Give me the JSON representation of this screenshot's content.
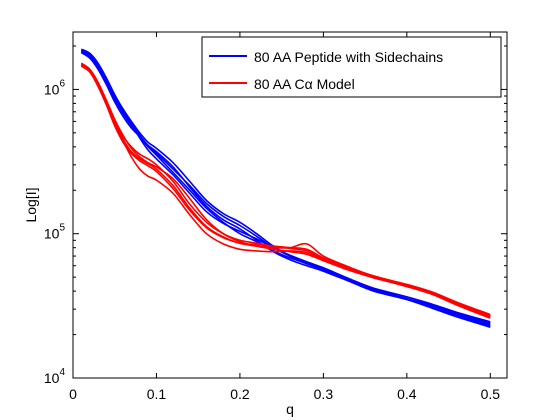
{
  "chart_data": {
    "type": "line",
    "title": "",
    "xlabel": "q",
    "ylabel": "Log[I]",
    "xlim": [
      0,
      0.52
    ],
    "ylim": [
      10000,
      2500000
    ],
    "yscale": "log",
    "grid": false,
    "legend_position": "top-right",
    "x_ticks": [
      {
        "value": 0,
        "label": "0"
      },
      {
        "value": 0.1,
        "label": "0.1"
      },
      {
        "value": 0.2,
        "label": "0.2"
      },
      {
        "value": 0.3,
        "label": "0.3"
      },
      {
        "value": 0.4,
        "label": "0.4"
      },
      {
        "value": 0.5,
        "label": "0.5"
      }
    ],
    "y_ticks": [
      {
        "value": 10000,
        "base": "10",
        "exp": "4"
      },
      {
        "value": 100000,
        "base": "10",
        "exp": "5"
      },
      {
        "value": 1000000,
        "base": "10",
        "exp": "6"
      }
    ],
    "legend": [
      {
        "label": "80 AA Peptide with Sidechains",
        "color": "#0000ff"
      },
      {
        "label": "80 AA Cα Model",
        "color": "#ff0000"
      }
    ],
    "series_groups": [
      {
        "legend_index": 0,
        "color": "#0000ff",
        "x": [
          0.01,
          0.02,
          0.03,
          0.04,
          0.05,
          0.06,
          0.07,
          0.08,
          0.09,
          0.1,
          0.12,
          0.14,
          0.16,
          0.18,
          0.2,
          0.22,
          0.24,
          0.26,
          0.28,
          0.3,
          0.33,
          0.36,
          0.4,
          0.43,
          0.46,
          0.5
        ],
        "runs": [
          [
            1850000,
            1720000,
            1450000,
            1150000,
            880000,
            700000,
            580000,
            480000,
            410000,
            370000,
            290000,
            210000,
            155000,
            125000,
            108000,
            90000,
            75000,
            66000,
            60000,
            55000,
            47000,
            40000,
            35000,
            31000,
            27000,
            23000
          ],
          [
            1900000,
            1780000,
            1520000,
            1200000,
            920000,
            730000,
            600000,
            500000,
            430000,
            390000,
            310000,
            230000,
            170000,
            138000,
            120000,
            100000,
            82000,
            70000,
            62000,
            57000,
            48000,
            41000,
            35500,
            31500,
            27500,
            23500
          ],
          [
            1800000,
            1650000,
            1380000,
            1080000,
            820000,
            650000,
            540000,
            470000,
            400000,
            350000,
            265000,
            200000,
            150000,
            120000,
            100000,
            88000,
            76000,
            68000,
            62000,
            56000,
            48500,
            41500,
            36500,
            32500,
            28500,
            24500
          ],
          [
            1880000,
            1740000,
            1480000,
            1180000,
            900000,
            710000,
            580000,
            460000,
            380000,
            330000,
            255000,
            190000,
            142000,
            118000,
            104000,
            92000,
            80000,
            71000,
            64000,
            58000,
            49000,
            42000,
            36500,
            32000,
            28000,
            24000
          ],
          [
            1830000,
            1700000,
            1430000,
            1120000,
            860000,
            680000,
            560000,
            470000,
            405000,
            360000,
            280000,
            215000,
            162000,
            132000,
            114000,
            96000,
            80000,
            70000,
            63000,
            57000,
            47500,
            40500,
            35000,
            30500,
            26500,
            22500
          ]
        ]
      },
      {
        "legend_index": 1,
        "color": "#ff0000",
        "x": [
          0.01,
          0.02,
          0.03,
          0.04,
          0.05,
          0.06,
          0.07,
          0.08,
          0.09,
          0.1,
          0.12,
          0.14,
          0.16,
          0.18,
          0.2,
          0.22,
          0.24,
          0.26,
          0.28,
          0.3,
          0.33,
          0.36,
          0.4,
          0.43,
          0.46,
          0.5
        ],
        "runs": [
          [
            1500000,
            1350000,
            1100000,
            820000,
            600000,
            470000,
            400000,
            355000,
            330000,
            300000,
            230000,
            160000,
            120000,
            100000,
            90000,
            86000,
            82000,
            79000,
            76000,
            67000,
            57000,
            50000,
            44000,
            39000,
            33000,
            27000
          ],
          [
            1450000,
            1320000,
            1050000,
            780000,
            560000,
            430000,
            360000,
            320000,
            295000,
            270000,
            205000,
            145000,
            110000,
            94000,
            86000,
            82000,
            80000,
            80000,
            85000,
            70000,
            59000,
            51000,
            44500,
            39500,
            33500,
            27500
          ],
          [
            1480000,
            1330000,
            1070000,
            800000,
            580000,
            440000,
            340000,
            280000,
            250000,
            235000,
            190000,
            135000,
            100000,
            85000,
            78000,
            76000,
            75000,
            76000,
            74000,
            66000,
            57000,
            50500,
            43500,
            38500,
            32500,
            26500
          ],
          [
            1520000,
            1380000,
            1120000,
            840000,
            620000,
            480000,
            390000,
            340000,
            310000,
            290000,
            240000,
            175000,
            125000,
            100000,
            88000,
            82000,
            78000,
            75000,
            72000,
            65000,
            56000,
            49500,
            43000,
            38000,
            32000,
            26000
          ],
          [
            1470000,
            1340000,
            1080000,
            800000,
            590000,
            450000,
            370000,
            330000,
            305000,
            280000,
            215000,
            150000,
            112000,
            95000,
            86000,
            84000,
            82000,
            80000,
            78000,
            68000,
            58000,
            51000,
            44000,
            39000,
            33000,
            27000
          ]
        ]
      }
    ]
  }
}
